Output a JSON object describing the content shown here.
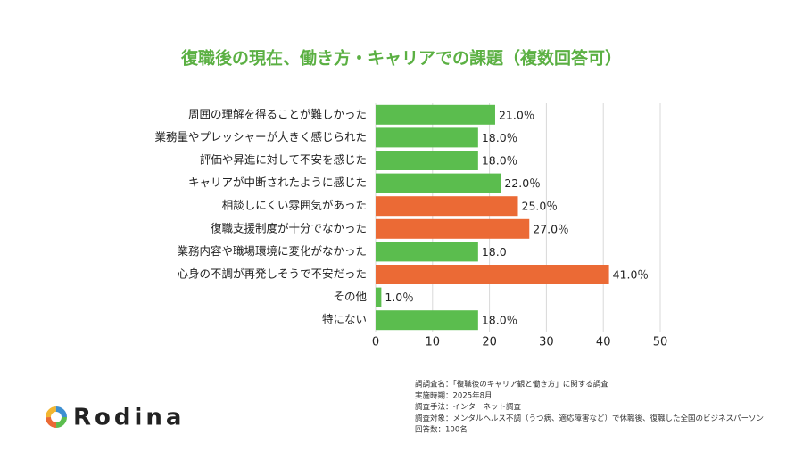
{
  "chart_data": {
    "type": "bar",
    "orientation": "horizontal",
    "title": "復職後の現在、働き方・キャリアでの課題（複数回答可）",
    "categories": [
      "周囲の理解を得ることが難しかった",
      "業務量やプレッシャーが大きく感じられた",
      "評価や昇進に対して不安を感じた",
      "キャリアが中断されたように感じた",
      "相談しにくい雰囲気があった",
      "復職支援制度が十分でなかった",
      "業務内容や職場環境に変化がなかった",
      "心身の不調が再発しそうで不安だった",
      "その他",
      "特にない"
    ],
    "values": [
      21.0,
      18.0,
      18.0,
      22.0,
      25.0,
      27.0,
      18.0,
      41.0,
      1.0,
      18.0
    ],
    "value_labels": [
      "21.0％",
      "18.0％",
      "18.0％",
      "22.0％",
      "25.0％",
      "27.0％",
      "18.0",
      "41.0％",
      "1.0％",
      "18.0％"
    ],
    "colors": [
      "#5bbd4e",
      "#5bbd4e",
      "#5bbd4e",
      "#5bbd4e",
      "#eb6a35",
      "#eb6a35",
      "#5bbd4e",
      "#eb6a35",
      "#5bbd4e",
      "#5bbd4e"
    ],
    "xlim": [
      0,
      50
    ],
    "xticks": [
      0,
      10,
      20,
      30,
      40,
      50
    ],
    "grid": true
  },
  "notes": [
    "調調査名：「復職後のキャリア観と働き方」に関する調査",
    "実施時期：2025年8月",
    "調査手法：インターネット調査",
    "調査対象：メンタルヘルス不調（うつ病、適応障害など）で休職後、復職した全国のビジネスパーソン",
    "回答数：100名"
  ],
  "brand": "Rodina"
}
